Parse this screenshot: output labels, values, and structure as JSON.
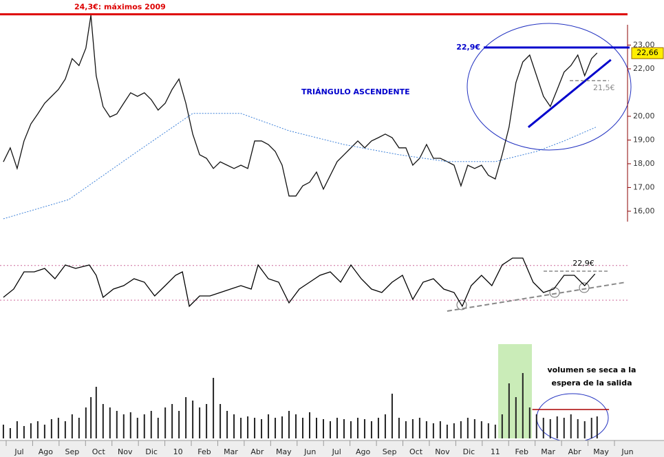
{
  "chart_data": [
    {
      "type": "line",
      "xlim": [
        -0.65,
        23
      ],
      "ylim": [
        15.62,
        24.61
      ],
      "yticks": [
        {
          "value": 16,
          "label": "16,00"
        },
        {
          "value": 17,
          "label": "17,00"
        },
        {
          "value": 18,
          "label": "18,00"
        },
        {
          "value": 19,
          "label": "19,00"
        },
        {
          "value": 20,
          "label": "20,00"
        },
        {
          "value": 22,
          "label": "22,00"
        },
        {
          "value": 23,
          "label": "23,00"
        }
      ],
      "series": [
        {
          "color": "#111111",
          "x": [
            -0.6,
            -0.34,
            -0.08,
            0.18,
            0.44,
            0.7,
            0.96,
            1.22,
            1.48,
            1.74,
            2.0,
            2.26,
            2.52,
            2.71,
            2.91,
            3.17,
            3.43,
            3.69,
            3.95,
            4.21,
            4.47,
            4.73,
            4.99,
            5.25,
            5.52,
            5.78,
            6.04,
            6.3,
            6.56,
            6.82,
            7.08,
            7.34,
            7.6,
            7.86,
            8.12,
            8.38,
            8.64,
            8.9,
            9.16,
            9.42,
            9.68,
            9.94,
            10.2,
            10.46,
            10.72,
            10.98,
            11.24,
            11.5,
            11.76,
            12.02,
            12.28,
            12.54,
            12.8,
            13.06,
            13.32,
            13.58,
            13.84,
            14.1,
            14.36,
            14.62,
            14.88,
            15.14,
            15.4,
            15.66,
            15.92,
            16.18,
            16.44,
            16.7,
            16.96,
            17.22,
            17.48,
            17.74,
            18.0,
            18.26,
            18.52,
            18.78,
            19.04,
            19.3,
            19.56,
            19.82,
            20.08,
            20.34,
            20.6,
            20.86,
            21.12,
            21.38,
            21.64,
            21.85
          ],
          "values": [
            18.08,
            18.67,
            17.8,
            18.96,
            19.68,
            20.1,
            20.55,
            20.84,
            21.13,
            21.57,
            22.43,
            22.14,
            22.87,
            24.26,
            21.71,
            20.41,
            19.97,
            20.1,
            20.55,
            20.99,
            20.84,
            20.99,
            20.7,
            20.26,
            20.55,
            21.13,
            21.57,
            20.55,
            19.25,
            18.38,
            18.23,
            17.8,
            18.08,
            17.94,
            17.8,
            17.94,
            17.8,
            18.96,
            18.96,
            18.81,
            18.52,
            17.94,
            16.64,
            16.64,
            17.07,
            17.22,
            17.65,
            16.93,
            17.51,
            18.09,
            18.38,
            18.67,
            18.96,
            18.67,
            18.96,
            19.1,
            19.25,
            19.1,
            18.67,
            18.67,
            17.94,
            18.23,
            18.81,
            18.23,
            18.23,
            18.09,
            17.94,
            17.07,
            17.94,
            17.8,
            17.94,
            17.51,
            17.36,
            18.38,
            19.54,
            21.42,
            22.29,
            22.58,
            21.71,
            20.84,
            20.41,
            21.13,
            21.86,
            22.14,
            22.58,
            21.71,
            22.43,
            22.67
          ]
        },
        {
          "color": "#3a7fd8",
          "x": [
            -0.6,
            1.87,
            4.47,
            6.56,
            8.38,
            10.2,
            12.28,
            14.36,
            16.18,
            18.0,
            19.56,
            20.6,
            21.8
          ],
          "values": [
            15.68,
            16.49,
            18.52,
            20.12,
            20.12,
            19.39,
            18.81,
            18.38,
            18.09,
            18.09,
            18.52,
            18.96,
            19.54
          ]
        }
      ],
      "annotations": [
        {
          "text": "24,3€: máximos 2009",
          "y": 24.3,
          "color": "#dd0000"
        },
        {
          "text": "22,9€",
          "y": 22.9,
          "color": "#0000cc"
        },
        {
          "text": "21,5€",
          "y": 21.5,
          "color": "#888888"
        },
        {
          "text": "TRIÁNGULO ASCENDENTE",
          "color": "#0000cc"
        }
      ],
      "trendline": {
        "x": [
          19.25,
          22.37
        ],
        "values": [
          19.54,
          22.38
        ],
        "color": "#0000cc"
      },
      "last_price": {
        "value": 22.66,
        "label": "22,66"
      }
    },
    {
      "type": "line",
      "xlim": [
        -0.65,
        23
      ],
      "ylim": [
        0,
        100
      ],
      "guides": [
        77,
        21
      ],
      "series": [
        {
          "color": "#000000",
          "x": [
            -0.6,
            -0.21,
            0.18,
            0.57,
            0.96,
            1.35,
            1.74,
            2.13,
            2.65,
            2.91,
            3.17,
            3.56,
            3.95,
            4.34,
            4.73,
            5.12,
            5.52,
            5.91,
            6.17,
            6.43,
            6.82,
            7.21,
            7.6,
            7.99,
            8.38,
            8.77,
            9.03,
            9.42,
            9.81,
            10.2,
            10.59,
            10.98,
            11.37,
            11.76,
            12.15,
            12.54,
            12.93,
            13.32,
            13.71,
            14.1,
            14.49,
            14.88,
            15.27,
            15.66,
            16.05,
            16.44,
            16.75,
            17.09,
            17.48,
            17.87,
            18.26,
            18.65,
            19.04,
            19.43,
            19.82,
            20.21,
            20.6,
            20.99,
            21.38,
            21.77
          ],
          "values": [
            25.6,
            38.9,
            66.7,
            66.7,
            72.2,
            55.6,
            77.8,
            72.2,
            77.8,
            61.1,
            25.6,
            38.9,
            44.4,
            55.6,
            50,
            27.8,
            44.4,
            61.1,
            66.7,
            11.1,
            27.8,
            27.8,
            33.3,
            38.9,
            44.4,
            38.9,
            77.8,
            55.6,
            50,
            16.7,
            38.9,
            50,
            61.1,
            66.7,
            50,
            77.8,
            55.6,
            38.9,
            33.3,
            50,
            61.1,
            22.2,
            50,
            55.6,
            38.9,
            33.3,
            11.1,
            44.4,
            61.1,
            44.4,
            77.8,
            88.9,
            88.9,
            50,
            33.3,
            38.9,
            61.1,
            61.1,
            44.4,
            63.3
          ]
        }
      ],
      "annotations": [
        {
          "text": "22,9€",
          "y": 67.8,
          "color": "#888888"
        }
      ],
      "trendline": {
        "x": [
          16.18,
          22.95
        ],
        "values": [
          3.3,
          50
        ],
        "color": "#888888"
      }
    },
    {
      "type": "bar",
      "xlim": [
        -0.65,
        23
      ],
      "ylim": [
        0,
        100
      ],
      "color": "#222222",
      "xticks": [
        {
          "value": 0,
          "label": "Jul"
        },
        {
          "value": 1,
          "label": "Ago"
        },
        {
          "value": 2,
          "label": "Sep"
        },
        {
          "value": 3,
          "label": "Oct"
        },
        {
          "value": 4,
          "label": "Nov"
        },
        {
          "value": 5,
          "label": "Dic"
        },
        {
          "value": 6,
          "label": "10"
        },
        {
          "value": 7,
          "label": "Feb"
        },
        {
          "value": 8,
          "label": "Mar"
        },
        {
          "value": 9,
          "label": "Abr"
        },
        {
          "value": 10,
          "label": "May"
        },
        {
          "value": 11,
          "label": "Jun"
        },
        {
          "value": 12,
          "label": "Jul"
        },
        {
          "value": 13,
          "label": "Ago"
        },
        {
          "value": 14,
          "label": "Sep"
        },
        {
          "value": 15,
          "label": "Oct"
        },
        {
          "value": 16,
          "label": "Nov"
        },
        {
          "value": 17,
          "label": "Dic"
        },
        {
          "value": 18,
          "label": "11"
        },
        {
          "value": 19,
          "label": "Feb"
        },
        {
          "value": 20,
          "label": "Mar"
        },
        {
          "value": 21,
          "label": "Abr"
        },
        {
          "value": 22,
          "label": "May"
        },
        {
          "value": 23,
          "label": "Jun"
        }
      ],
      "x": [
        -0.6,
        -0.34,
        -0.08,
        0.18,
        0.44,
        0.7,
        0.96,
        1.22,
        1.48,
        1.74,
        2.0,
        2.26,
        2.52,
        2.71,
        2.91,
        3.17,
        3.43,
        3.69,
        3.95,
        4.21,
        4.47,
        4.73,
        4.99,
        5.25,
        5.52,
        5.78,
        6.04,
        6.3,
        6.56,
        6.82,
        7.08,
        7.34,
        7.6,
        7.86,
        8.12,
        8.38,
        8.64,
        8.9,
        9.16,
        9.42,
        9.68,
        9.94,
        10.2,
        10.46,
        10.72,
        10.98,
        11.24,
        11.5,
        11.76,
        12.02,
        12.28,
        12.54,
        12.8,
        13.06,
        13.32,
        13.58,
        13.84,
        14.1,
        14.36,
        14.62,
        14.88,
        15.14,
        15.4,
        15.66,
        15.92,
        16.18,
        16.44,
        16.7,
        16.96,
        17.22,
        17.48,
        17.74,
        18.0,
        18.26,
        18.52,
        18.78,
        19.04,
        19.3,
        19.56,
        19.82,
        20.08,
        20.34,
        20.6,
        20.86,
        21.12,
        21.38,
        21.64,
        21.85
      ],
      "values": [
        20,
        15,
        25,
        18,
        22,
        25,
        20,
        28,
        30,
        25,
        35,
        30,
        45,
        60,
        75,
        50,
        45,
        40,
        35,
        38,
        30,
        35,
        40,
        30,
        45,
        50,
        40,
        60,
        55,
        45,
        50,
        88,
        50,
        40,
        35,
        30,
        32,
        30,
        28,
        35,
        30,
        32,
        40,
        35,
        30,
        38,
        30,
        28,
        25,
        30,
        28,
        25,
        30,
        28,
        25,
        30,
        35,
        65,
        30,
        25,
        28,
        30,
        25,
        22,
        25,
        20,
        22,
        25,
        30,
        28,
        25,
        22,
        20,
        35,
        80,
        60,
        95,
        45,
        35,
        30,
        28,
        32,
        30,
        35,
        28,
        25,
        30,
        32
      ],
      "level": {
        "y": 42,
        "x": [
          19.4,
          22.3
        ],
        "color": "#aa0000"
      },
      "annotations": [
        {
          "text": "volumen se seca a la"
        },
        {
          "text": "espera de la salida"
        }
      ]
    }
  ]
}
